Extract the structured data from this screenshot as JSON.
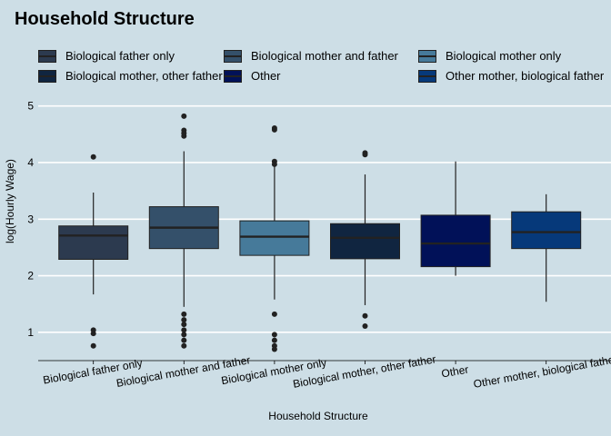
{
  "chart_data": {
    "type": "boxplot",
    "title": "Household Structure",
    "xlabel": "Household Structure",
    "ylabel": "log(Hourly Wage)",
    "ylim": [
      0.5,
      5.3
    ],
    "yticks": [
      1,
      2,
      3,
      4,
      5
    ],
    "legend_position": "top",
    "categories": [
      "Biological father only",
      "Biological mother and father",
      "Biological mother only",
      "Biological mother, other father",
      "Other",
      "Other mother, biological father"
    ],
    "colors": [
      "#2c3a4f",
      "#34506a",
      "#467a9a",
      "#102540",
      "#011158",
      "#06397a"
    ],
    "boxes": [
      {
        "min": 1.67,
        "q1": 2.29,
        "median": 2.71,
        "q3": 2.88,
        "max": 3.47,
        "outliers": [
          4.1,
          1.04,
          0.98,
          0.76
        ]
      },
      {
        "min": 1.45,
        "q1": 2.48,
        "median": 2.85,
        "q3": 3.22,
        "max": 4.2,
        "outliers": [
          4.82,
          4.57,
          4.52,
          4.47,
          1.32,
          1.22,
          1.14,
          1.04,
          0.96,
          0.86,
          0.76
        ]
      },
      {
        "min": 1.58,
        "q1": 2.36,
        "median": 2.69,
        "q3": 2.97,
        "max": 3.95,
        "outliers": [
          4.61,
          4.58,
          4.02,
          3.97,
          1.32,
          0.96,
          0.86,
          0.76,
          0.7
        ]
      },
      {
        "min": 1.48,
        "q1": 2.3,
        "median": 2.67,
        "q3": 2.92,
        "max": 3.79,
        "outliers": [
          4.17,
          4.14,
          1.29,
          1.11
        ]
      },
      {
        "min": 2.0,
        "q1": 2.16,
        "median": 2.57,
        "q3": 3.07,
        "max": 4.02,
        "outliers": []
      },
      {
        "min": 1.54,
        "q1": 2.48,
        "median": 2.77,
        "q3": 3.13,
        "max": 3.44,
        "outliers": []
      }
    ]
  }
}
